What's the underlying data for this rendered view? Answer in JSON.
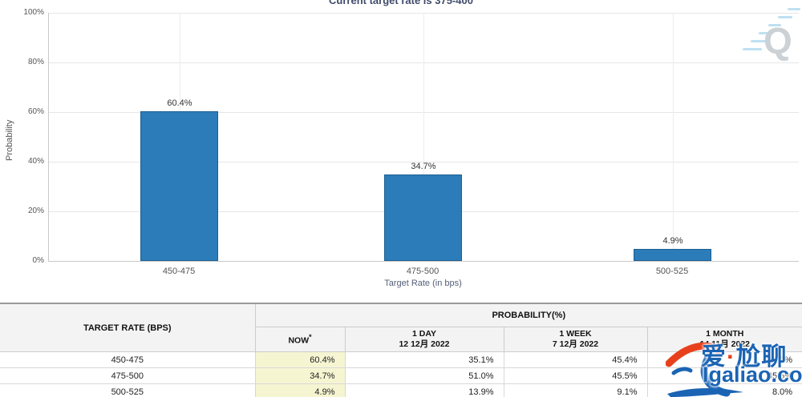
{
  "chart": {
    "title": "Current target rate is 375-400",
    "ylabel": "Probability",
    "xlabel": "Target Rate (in bps)",
    "watermark_letter": "Q",
    "colors": {
      "bar": "#2b7cb8",
      "bar_border": "#1c5f94",
      "title_text": "#404b6a",
      "now_column_bg": "#f5f5d2",
      "logo_blue": "#1b64b4",
      "logo_red": "#e8401c"
    }
  },
  "chart_data": {
    "type": "bar",
    "title": "Current target rate is 375-400",
    "xlabel": "Target Rate (in bps)",
    "ylabel": "Probability",
    "categories": [
      "450-475",
      "475-500",
      "500-525"
    ],
    "values": [
      60.4,
      34.7,
      4.9
    ],
    "value_labels": [
      "60.4%",
      "34.7%",
      "4.9%"
    ],
    "ytick_labels_top_to_bottom": [
      "100%",
      "80%",
      "60%",
      "40%",
      "20%",
      "0%"
    ],
    "ylim": [
      0,
      100
    ],
    "grid": true,
    "legend": false
  },
  "table": {
    "col_header": "TARGET RATE (BPS)",
    "group_header": "PROBABILITY(%)",
    "sub_headers": [
      {
        "line1": "NOW",
        "sup": "*",
        "line2": ""
      },
      {
        "line1": "1 DAY",
        "line2": "12 12月 2022"
      },
      {
        "line1": "1 WEEK",
        "line2": "7 12月 2022"
      },
      {
        "line1": "1 MONTH",
        "line2": "14 11月 2022"
      }
    ],
    "rows": [
      {
        "label": "450-475",
        "now": "60.4%",
        "day": "35.1%",
        "week": "45.4%",
        "month": "46.5%"
      },
      {
        "label": "475-500",
        "now": "34.7%",
        "day": "51.0%",
        "week": "45.5%",
        "month": "45.5%"
      },
      {
        "label": "500-525",
        "now": "4.9%",
        "day": "13.9%",
        "week": "9.1%",
        "month": "8.0%"
      }
    ]
  },
  "watermark": {
    "cn_left": "爱",
    "dot": "·",
    "cn_right": "尬聊",
    "site": "Igaliao.com"
  }
}
